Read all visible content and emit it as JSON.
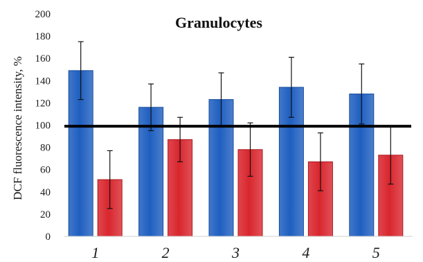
{
  "chart_data": {
    "type": "bar",
    "title": "Granulocytes",
    "xlabel": "",
    "ylabel": "DCF fluorescence intensity, %",
    "ylim": [
      0,
      200
    ],
    "yticks": [
      0,
      20,
      40,
      60,
      80,
      100,
      120,
      140,
      160,
      180,
      200
    ],
    "categories": [
      "1",
      "2",
      "3",
      "4",
      "5"
    ],
    "series": [
      {
        "color": "#1f5fc0",
        "values": [
          149,
          116,
          123,
          134,
          128
        ],
        "errors": [
          26,
          21,
          24,
          27,
          27
        ]
      },
      {
        "color": "#d9262e",
        "values": [
          51,
          87,
          78,
          67,
          73
        ],
        "errors": [
          26,
          20,
          24,
          26,
          26
        ]
      }
    ],
    "reference_line": {
      "value": 99,
      "color": "#000000"
    },
    "grid": false,
    "legend": "none"
  }
}
